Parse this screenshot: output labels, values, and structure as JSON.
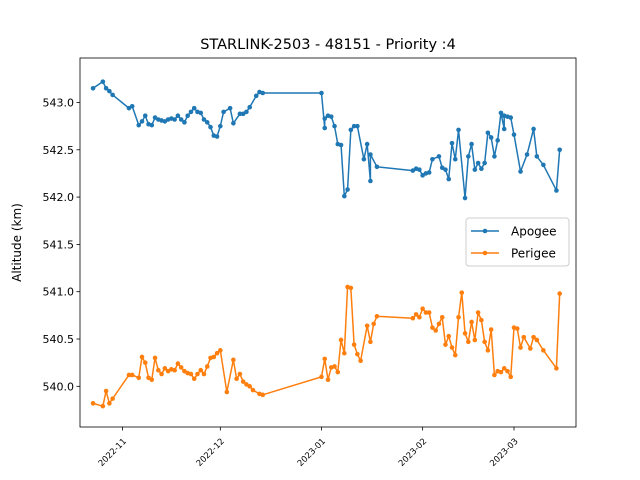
{
  "chart_data": {
    "type": "line",
    "title": "STARLINK-2503 - 48151 - Priority :4",
    "xlabel": "",
    "ylabel": "Altitude (km)",
    "x_axis": "date",
    "xlim": [
      "2022-10-19",
      "2023-03-20"
    ],
    "ylim": [
      539.57,
      543.47
    ],
    "grid": false,
    "legend_position": "center-right",
    "x_ticks": [
      {
        "date": "2022-11-01",
        "label": "2022-11"
      },
      {
        "date": "2022-12-01",
        "label": "2022-12"
      },
      {
        "date": "2023-01-01",
        "label": "2023-01"
      },
      {
        "date": "2023-02-01",
        "label": "2023-02"
      },
      {
        "date": "2023-03-01",
        "label": "2023-03"
      }
    ],
    "y_ticks": [
      {
        "value": 540.0,
        "label": "540.0"
      },
      {
        "value": 540.5,
        "label": "540.5"
      },
      {
        "value": 541.0,
        "label": "541.0"
      },
      {
        "value": 541.5,
        "label": "541.5"
      },
      {
        "value": 542.0,
        "label": "542.0"
      },
      {
        "value": 542.5,
        "label": "542.5"
      },
      {
        "value": 543.0,
        "label": "543.0"
      }
    ],
    "series": [
      {
        "name": "Apogee",
        "color": "#1f77b4",
        "points": [
          [
            "2022-10-23",
            543.15
          ],
          [
            "2022-10-26",
            543.22
          ],
          [
            "2022-10-27",
            543.15
          ],
          [
            "2022-10-28",
            543.12
          ],
          [
            "2022-10-29",
            543.08
          ],
          [
            "2022-11-03",
            542.94
          ],
          [
            "2022-11-04",
            542.96
          ],
          [
            "2022-11-06",
            542.76
          ],
          [
            "2022-11-07",
            542.8
          ],
          [
            "2022-11-08",
            542.86
          ],
          [
            "2022-11-09",
            542.77
          ],
          [
            "2022-11-10",
            542.76
          ],
          [
            "2022-11-11",
            542.84
          ],
          [
            "2022-11-12",
            542.82
          ],
          [
            "2022-11-13",
            542.81
          ],
          [
            "2022-11-14",
            542.8
          ],
          [
            "2022-11-15",
            542.82
          ],
          [
            "2022-11-16",
            542.83
          ],
          [
            "2022-11-17",
            542.82
          ],
          [
            "2022-11-18",
            542.86
          ],
          [
            "2022-11-19",
            542.82
          ],
          [
            "2022-11-20",
            542.79
          ],
          [
            "2022-11-21",
            542.86
          ],
          [
            "2022-11-22",
            542.9
          ],
          [
            "2022-11-23",
            542.94
          ],
          [
            "2022-11-24",
            542.9
          ],
          [
            "2022-11-25",
            542.89
          ],
          [
            "2022-11-26",
            542.82
          ],
          [
            "2022-11-27",
            542.79
          ],
          [
            "2022-11-28",
            542.74
          ],
          [
            "2022-11-29",
            542.65
          ],
          [
            "2022-11-30",
            542.64
          ],
          [
            "2022-12-01",
            542.75
          ],
          [
            "2022-12-02",
            542.9
          ],
          [
            "2022-12-04",
            542.94
          ],
          [
            "2022-12-05",
            542.78
          ],
          [
            "2022-12-07",
            542.88
          ],
          [
            "2022-12-08",
            542.88
          ],
          [
            "2022-12-09",
            542.9
          ],
          [
            "2022-12-10",
            542.95
          ],
          [
            "2022-12-12",
            543.07
          ],
          [
            "2022-12-13",
            543.11
          ],
          [
            "2022-12-14",
            543.1
          ],
          [
            "2023-01-01",
            543.1
          ],
          [
            "2023-01-02",
            542.73
          ],
          [
            "2023-01-02",
            542.83
          ],
          [
            "2023-01-03",
            542.86
          ],
          [
            "2023-01-04",
            542.85
          ],
          [
            "2023-01-05",
            542.75
          ],
          [
            "2023-01-06",
            542.56
          ],
          [
            "2023-01-07",
            542.55
          ],
          [
            "2023-01-08",
            542.01
          ],
          [
            "2023-01-09",
            542.08
          ],
          [
            "2023-01-10",
            542.71
          ],
          [
            "2023-01-11",
            542.75
          ],
          [
            "2023-01-12",
            542.75
          ],
          [
            "2023-01-14",
            542.4
          ],
          [
            "2023-01-15",
            542.56
          ],
          [
            "2023-01-16",
            542.17
          ],
          [
            "2023-01-16",
            542.45
          ],
          [
            "2023-01-18",
            542.32
          ],
          [
            "2023-01-29",
            542.28
          ],
          [
            "2023-01-30",
            542.3
          ],
          [
            "2023-01-31",
            542.29
          ],
          [
            "2023-02-01",
            542.23
          ],
          [
            "2023-02-02",
            542.25
          ],
          [
            "2023-02-03",
            542.26
          ],
          [
            "2023-02-04",
            542.4
          ],
          [
            "2023-02-06",
            542.43
          ],
          [
            "2023-02-07",
            542.31
          ],
          [
            "2023-02-08",
            542.29
          ],
          [
            "2023-02-09",
            542.19
          ],
          [
            "2023-02-10",
            542.57
          ],
          [
            "2023-02-11",
            542.4
          ],
          [
            "2023-02-12",
            542.71
          ],
          [
            "2023-02-14",
            541.99
          ],
          [
            "2023-02-15",
            542.43
          ],
          [
            "2023-02-16",
            542.56
          ],
          [
            "2023-02-17",
            542.29
          ],
          [
            "2023-02-18",
            542.36
          ],
          [
            "2023-02-19",
            542.3
          ],
          [
            "2023-02-20",
            542.36
          ],
          [
            "2023-02-21",
            542.68
          ],
          [
            "2023-02-22",
            542.63
          ],
          [
            "2023-02-23",
            542.43
          ],
          [
            "2023-02-24",
            542.6
          ],
          [
            "2023-02-25",
            542.89
          ],
          [
            "2023-02-26",
            542.72
          ],
          [
            "2023-02-26",
            542.86
          ],
          [
            "2023-02-27",
            542.85
          ],
          [
            "2023-02-28",
            542.84
          ],
          [
            "2023-03-01",
            542.66
          ],
          [
            "2023-03-03",
            542.27
          ],
          [
            "2023-03-05",
            542.45
          ],
          [
            "2023-03-07",
            542.72
          ],
          [
            "2023-03-08",
            542.43
          ],
          [
            "2023-03-10",
            542.34
          ],
          [
            "2023-03-14",
            542.07
          ],
          [
            "2023-03-15",
            542.5
          ]
        ]
      },
      {
        "name": "Perigee",
        "color": "#ff7f0e",
        "points": [
          [
            "2022-10-23",
            539.82
          ],
          [
            "2022-10-26",
            539.79
          ],
          [
            "2022-10-27",
            539.95
          ],
          [
            "2022-10-28",
            539.82
          ],
          [
            "2022-10-29",
            539.87
          ],
          [
            "2022-11-03",
            540.12
          ],
          [
            "2022-11-04",
            540.12
          ],
          [
            "2022-11-06",
            540.09
          ],
          [
            "2022-11-07",
            540.31
          ],
          [
            "2022-11-08",
            540.25
          ],
          [
            "2022-11-09",
            540.09
          ],
          [
            "2022-11-10",
            540.07
          ],
          [
            "2022-11-11",
            540.3
          ],
          [
            "2022-11-12",
            540.17
          ],
          [
            "2022-11-13",
            540.13
          ],
          [
            "2022-11-14",
            540.19
          ],
          [
            "2022-11-15",
            540.16
          ],
          [
            "2022-11-16",
            540.18
          ],
          [
            "2022-11-17",
            540.17
          ],
          [
            "2022-11-18",
            540.24
          ],
          [
            "2022-11-19",
            540.2
          ],
          [
            "2022-11-20",
            540.16
          ],
          [
            "2022-11-21",
            540.14
          ],
          [
            "2022-11-22",
            540.13
          ],
          [
            "2022-11-23",
            540.08
          ],
          [
            "2022-11-24",
            540.13
          ],
          [
            "2022-11-25",
            540.17
          ],
          [
            "2022-11-26",
            540.13
          ],
          [
            "2022-11-27",
            540.21
          ],
          [
            "2022-11-28",
            540.3
          ],
          [
            "2022-11-29",
            540.31
          ],
          [
            "2022-11-30",
            540.35
          ],
          [
            "2022-12-01",
            540.38
          ],
          [
            "2022-12-03",
            539.94
          ],
          [
            "2022-12-05",
            540.28
          ],
          [
            "2022-12-06",
            540.08
          ],
          [
            "2022-12-07",
            540.13
          ],
          [
            "2022-12-08",
            540.05
          ],
          [
            "2022-12-09",
            540.02
          ],
          [
            "2022-12-10",
            540.0
          ],
          [
            "2022-12-11",
            539.96
          ],
          [
            "2022-12-13",
            539.92
          ],
          [
            "2022-12-14",
            539.91
          ],
          [
            "2023-01-01",
            540.1
          ],
          [
            "2023-01-02",
            540.29
          ],
          [
            "2023-01-03",
            540.07
          ],
          [
            "2023-01-04",
            540.2
          ],
          [
            "2023-01-05",
            540.21
          ],
          [
            "2023-01-06",
            540.15
          ],
          [
            "2023-01-07",
            540.49
          ],
          [
            "2023-01-08",
            540.35
          ],
          [
            "2023-01-09",
            541.05
          ],
          [
            "2023-01-10",
            541.04
          ],
          [
            "2023-01-11",
            540.44
          ],
          [
            "2023-01-12",
            540.34
          ],
          [
            "2023-01-13",
            540.27
          ],
          [
            "2023-01-15",
            540.64
          ],
          [
            "2023-01-16",
            540.47
          ],
          [
            "2023-01-17",
            540.66
          ],
          [
            "2023-01-18",
            540.74
          ],
          [
            "2023-01-29",
            540.72
          ],
          [
            "2023-01-30",
            540.76
          ],
          [
            "2023-01-31",
            540.73
          ],
          [
            "2023-02-01",
            540.82
          ],
          [
            "2023-02-02",
            540.78
          ],
          [
            "2023-02-03",
            540.78
          ],
          [
            "2023-02-04",
            540.62
          ],
          [
            "2023-02-05",
            540.59
          ],
          [
            "2023-02-06",
            540.66
          ],
          [
            "2023-02-07",
            540.73
          ],
          [
            "2023-02-08",
            540.44
          ],
          [
            "2023-02-09",
            540.53
          ],
          [
            "2023-02-10",
            540.41
          ],
          [
            "2023-02-11",
            540.33
          ],
          [
            "2023-02-12",
            540.73
          ],
          [
            "2023-02-13",
            540.99
          ],
          [
            "2023-02-14",
            540.56
          ],
          [
            "2023-02-15",
            540.47
          ],
          [
            "2023-02-16",
            540.68
          ],
          [
            "2023-02-17",
            540.49
          ],
          [
            "2023-02-18",
            540.78
          ],
          [
            "2023-02-19",
            540.7
          ],
          [
            "2023-02-20",
            540.47
          ],
          [
            "2023-02-21",
            540.38
          ],
          [
            "2023-02-22",
            540.6
          ],
          [
            "2023-02-23",
            540.12
          ],
          [
            "2023-02-24",
            540.16
          ],
          [
            "2023-02-25",
            540.15
          ],
          [
            "2023-02-26",
            540.19
          ],
          [
            "2023-02-27",
            540.16
          ],
          [
            "2023-02-28",
            540.1
          ],
          [
            "2023-03-01",
            540.62
          ],
          [
            "2023-03-02",
            540.61
          ],
          [
            "2023-03-03",
            540.41
          ],
          [
            "2023-03-04",
            540.52
          ],
          [
            "2023-03-06",
            540.4
          ],
          [
            "2023-03-07",
            540.52
          ],
          [
            "2023-03-08",
            540.49
          ],
          [
            "2023-03-10",
            540.38
          ],
          [
            "2023-03-14",
            540.19
          ],
          [
            "2023-03-15",
            540.98
          ]
        ]
      }
    ]
  }
}
